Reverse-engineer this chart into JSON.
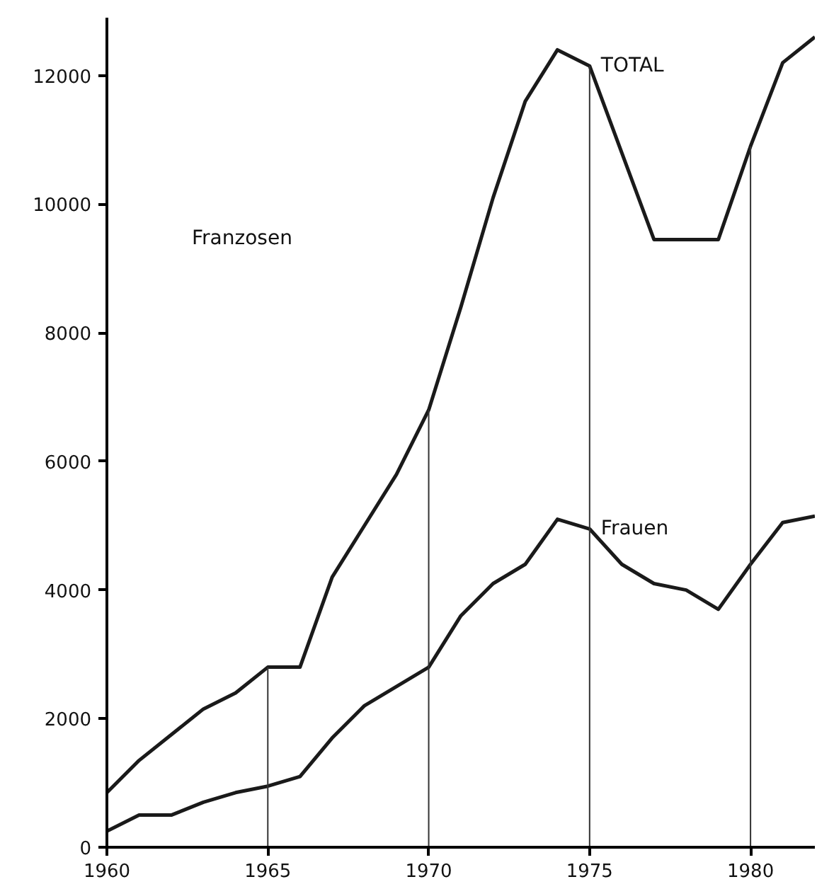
{
  "chart_data": {
    "type": "line",
    "x": [
      1960,
      1961,
      1962,
      1963,
      1964,
      1965,
      1966,
      1967,
      1968,
      1969,
      1970,
      1971,
      1972,
      1973,
      1974,
      1975,
      1976,
      1977,
      1978,
      1979,
      1980,
      1981,
      1982
    ],
    "series": [
      {
        "name": "TOTAL",
        "color": "#1a1a1a",
        "values": [
          850,
          1350,
          1750,
          2150,
          2400,
          2800,
          2800,
          4200,
          5000,
          5800,
          6800,
          8400,
          10100,
          11600,
          12400,
          12150,
          10800,
          9450,
          9450,
          9450,
          10900,
          12200,
          12600
        ]
      },
      {
        "name": "Frauen",
        "color": "#1a1a1a",
        "values": [
          250,
          500,
          500,
          700,
          850,
          950,
          1100,
          1700,
          2200,
          2500,
          2800,
          3600,
          4100,
          4400,
          5100,
          4950,
          4400,
          4100,
          4000,
          3700,
          4400,
          5050,
          5150
        ]
      }
    ],
    "annotations": [
      "Franzosen"
    ],
    "ref_lines": [
      {
        "axis": "x",
        "value": 1965
      },
      {
        "axis": "x",
        "value": 1970
      },
      {
        "axis": "x",
        "value": 1975
      },
      {
        "axis": "x",
        "value": 1980
      }
    ],
    "xlim": [
      1960,
      1982
    ],
    "ylim": [
      0,
      12900
    ],
    "xticks": [
      1960,
      1965,
      1970,
      1975,
      1980
    ],
    "yticks": [
      0,
      2000,
      4000,
      6000,
      8000,
      10000,
      12000
    ],
    "grid": false,
    "legend": false,
    "marker": "none",
    "line_style": "solid"
  }
}
